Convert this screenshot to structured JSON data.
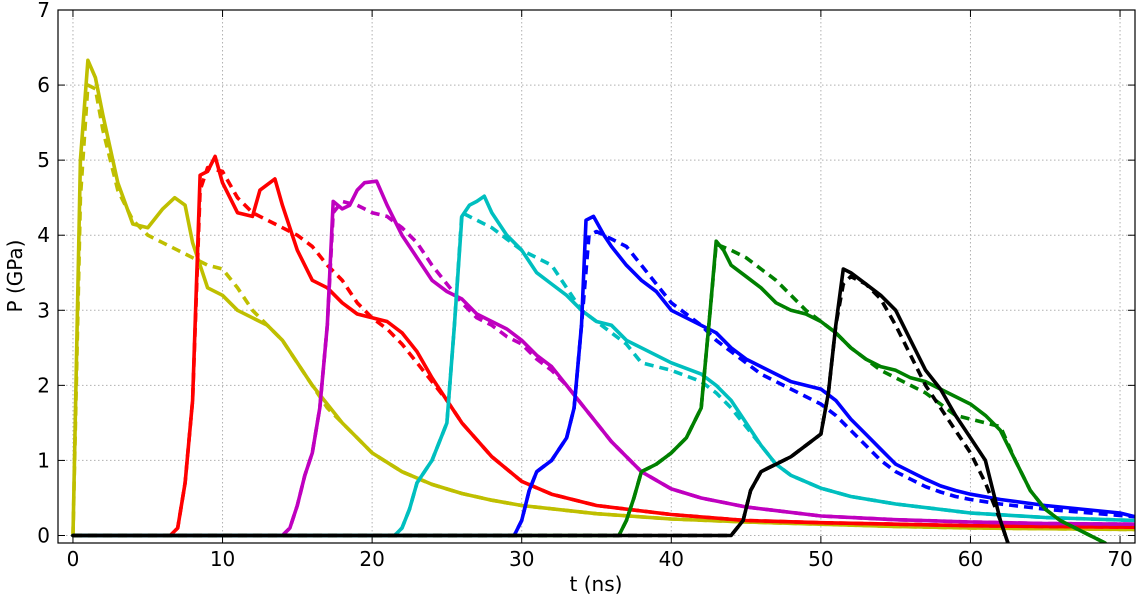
{
  "chart_data": {
    "type": "line",
    "title": "",
    "xlabel": "t (ns)",
    "ylabel": "P (GPa)",
    "xlim": [
      -1,
      71
    ],
    "ylim": [
      -0.1,
      7
    ],
    "xticks": [
      0,
      10,
      20,
      30,
      40,
      50,
      60,
      70
    ],
    "yticks": [
      0,
      1,
      2,
      3,
      4,
      5,
      6,
      7
    ],
    "grid": true,
    "legend": "none",
    "series": [
      {
        "color": "#bfbf00",
        "style": "solid",
        "x": [
          0,
          0.5,
          1,
          1.5,
          2,
          3,
          4,
          5,
          6,
          6.8,
          7.5,
          8,
          9,
          10,
          11,
          12,
          13,
          14,
          15,
          16,
          17,
          18,
          19,
          20,
          22,
          24,
          26,
          28,
          30,
          35,
          40,
          45,
          50,
          55,
          60,
          65,
          71
        ],
        "y": [
          0,
          5,
          6.33,
          6.1,
          5.6,
          4.7,
          4.15,
          4.1,
          4.35,
          4.5,
          4.4,
          3.9,
          3.3,
          3.2,
          3.0,
          2.9,
          2.8,
          2.6,
          2.3,
          2.0,
          1.75,
          1.5,
          1.3,
          1.1,
          0.85,
          0.68,
          0.56,
          0.47,
          0.4,
          0.29,
          0.22,
          0.18,
          0.15,
          0.12,
          0.1,
          0.09,
          0.08
        ]
      },
      {
        "color": "#bfbf00",
        "style": "dashed",
        "x": [
          0,
          0.5,
          1,
          1.5,
          2,
          3,
          4,
          5,
          6,
          7,
          8,
          9,
          10,
          11,
          12,
          13,
          14,
          15,
          16,
          17,
          18,
          19,
          20,
          22,
          24,
          26,
          28,
          30,
          35,
          40,
          45,
          50,
          55,
          60,
          65,
          71
        ],
        "y": [
          0,
          4.5,
          6.0,
          5.95,
          5.4,
          4.6,
          4.2,
          4.0,
          3.9,
          3.8,
          3.7,
          3.6,
          3.55,
          3.3,
          3.0,
          2.8,
          2.6,
          2.3,
          2.0,
          1.7,
          1.5,
          1.3,
          1.1,
          0.85,
          0.68,
          0.56,
          0.47,
          0.4,
          0.29,
          0.22,
          0.18,
          0.15,
          0.12,
          0.1,
          0.09,
          0.08
        ]
      },
      {
        "color": "#ff0000",
        "style": "solid",
        "x": [
          0,
          6.5,
          7,
          7.5,
          8,
          8.5,
          9,
          9.5,
          10,
          11,
          12,
          12.5,
          13.5,
          14,
          15,
          16,
          17,
          18,
          19,
          20,
          21,
          22,
          23,
          24,
          25,
          26,
          28,
          30,
          32,
          35,
          40,
          45,
          50,
          55,
          60,
          65,
          71
        ],
        "y": [
          0,
          0,
          0.1,
          0.7,
          1.8,
          4.8,
          4.85,
          5.05,
          4.7,
          4.3,
          4.25,
          4.6,
          4.75,
          4.4,
          3.8,
          3.4,
          3.3,
          3.1,
          2.95,
          2.9,
          2.85,
          2.7,
          2.45,
          2.1,
          1.8,
          1.5,
          1.05,
          0.72,
          0.55,
          0.4,
          0.28,
          0.2,
          0.17,
          0.15,
          0.13,
          0.12,
          0.11
        ]
      },
      {
        "color": "#ff0000",
        "style": "dashed",
        "x": [
          0,
          6.5,
          7,
          7.5,
          8,
          8.5,
          9,
          10,
          11,
          12,
          13,
          14,
          15,
          16,
          17,
          18,
          19,
          20,
          21,
          22,
          23,
          24,
          25,
          26,
          28,
          30,
          32,
          35,
          40,
          45,
          50,
          55,
          60,
          65,
          71
        ],
        "y": [
          0,
          0,
          0.1,
          0.7,
          1.8,
          4.6,
          4.9,
          4.85,
          4.5,
          4.3,
          4.2,
          4.1,
          4.0,
          3.85,
          3.6,
          3.4,
          3.1,
          2.9,
          2.75,
          2.55,
          2.3,
          2.05,
          1.8,
          1.5,
          1.05,
          0.72,
          0.55,
          0.4,
          0.28,
          0.2,
          0.17,
          0.15,
          0.13,
          0.12,
          0.11
        ]
      },
      {
        "color": "#bf00bf",
        "style": "solid",
        "x": [
          0,
          14,
          14.5,
          15,
          15.5,
          16,
          16.5,
          17,
          17.4,
          18,
          18.5,
          19,
          19.5,
          20.3,
          21,
          22,
          23,
          24,
          25,
          26,
          27,
          28,
          29,
          30,
          31,
          32,
          33,
          34,
          35,
          36,
          38,
          40,
          42,
          45,
          50,
          55,
          60,
          65,
          71
        ],
        "y": [
          0,
          0,
          0.1,
          0.4,
          0.8,
          1.1,
          1.7,
          2.8,
          4.45,
          4.35,
          4.4,
          4.6,
          4.7,
          4.72,
          4.4,
          4.0,
          3.7,
          3.4,
          3.25,
          3.15,
          2.95,
          2.85,
          2.75,
          2.6,
          2.4,
          2.25,
          2.0,
          1.75,
          1.5,
          1.25,
          0.85,
          0.62,
          0.5,
          0.38,
          0.26,
          0.21,
          0.18,
          0.16,
          0.15
        ]
      },
      {
        "color": "#bf00bf",
        "style": "dashed",
        "x": [
          0,
          14,
          14.5,
          15,
          15.5,
          16,
          16.5,
          17,
          17.4,
          18,
          19,
          20,
          21,
          22,
          23,
          24,
          25,
          26,
          27,
          28,
          29,
          30,
          31,
          32,
          33,
          34,
          35,
          36,
          38,
          40,
          42,
          45,
          50,
          55,
          60,
          65,
          71
        ],
        "y": [
          0,
          0,
          0.1,
          0.4,
          0.8,
          1.1,
          1.7,
          2.8,
          4.3,
          4.45,
          4.4,
          4.3,
          4.25,
          4.1,
          3.9,
          3.6,
          3.35,
          3.1,
          2.9,
          2.8,
          2.65,
          2.55,
          2.35,
          2.2,
          2.0,
          1.75,
          1.5,
          1.25,
          0.85,
          0.62,
          0.5,
          0.38,
          0.26,
          0.21,
          0.18,
          0.16,
          0.15
        ]
      },
      {
        "color": "#00bfbf",
        "style": "solid",
        "x": [
          0,
          21.5,
          22,
          22.5,
          23,
          24,
          25,
          25.5,
          26,
          26.5,
          27,
          27.5,
          28,
          29,
          30,
          31,
          32,
          33,
          34,
          35,
          36,
          37,
          38,
          40,
          42,
          43,
          44,
          45,
          46,
          47,
          48,
          50,
          52,
          55,
          60,
          65,
          71
        ],
        "y": [
          0,
          0,
          0.1,
          0.35,
          0.7,
          1.0,
          1.5,
          2.8,
          4.25,
          4.4,
          4.45,
          4.52,
          4.3,
          4.0,
          3.8,
          3.5,
          3.35,
          3.2,
          3.0,
          2.85,
          2.8,
          2.6,
          2.5,
          2.3,
          2.15,
          2.0,
          1.8,
          1.5,
          1.2,
          0.95,
          0.8,
          0.63,
          0.52,
          0.42,
          0.3,
          0.24,
          0.2
        ]
      },
      {
        "color": "#00bfbf",
        "style": "dashed",
        "x": [
          0,
          21.5,
          22,
          22.5,
          23,
          24,
          25,
          25.5,
          26,
          27,
          28,
          29,
          30,
          31,
          32,
          33,
          34,
          35,
          36,
          37,
          38,
          40,
          42,
          43,
          44,
          45,
          46,
          47,
          48,
          50,
          52,
          55,
          60,
          65,
          71
        ],
        "y": [
          0,
          0,
          0.1,
          0.35,
          0.7,
          1.0,
          1.5,
          2.8,
          4.3,
          4.2,
          4.1,
          3.95,
          3.8,
          3.7,
          3.6,
          3.3,
          3.0,
          2.85,
          2.7,
          2.55,
          2.3,
          2.2,
          2.05,
          1.9,
          1.7,
          1.45,
          1.2,
          0.95,
          0.8,
          0.63,
          0.52,
          0.42,
          0.3,
          0.24,
          0.2
        ]
      },
      {
        "color": "#0000ff",
        "style": "solid",
        "x": [
          0,
          29.5,
          30,
          30.5,
          31,
          32,
          33,
          33.5,
          34,
          34.3,
          34.8,
          35.5,
          36,
          37,
          38,
          39,
          40,
          41,
          42,
          43,
          44,
          45,
          46,
          47,
          48,
          49,
          50,
          51,
          52,
          53,
          54,
          55,
          56,
          57,
          58,
          59,
          60,
          62,
          65,
          68,
          70,
          71
        ],
        "y": [
          0,
          0,
          0.2,
          0.6,
          0.85,
          1.0,
          1.3,
          1.7,
          2.8,
          4.2,
          4.25,
          4.0,
          3.85,
          3.6,
          3.4,
          3.25,
          3.0,
          2.9,
          2.8,
          2.7,
          2.5,
          2.35,
          2.25,
          2.15,
          2.05,
          2.0,
          1.95,
          1.8,
          1.55,
          1.35,
          1.15,
          0.95,
          0.85,
          0.75,
          0.66,
          0.6,
          0.55,
          0.48,
          0.4,
          0.34,
          0.3,
          0.25
        ]
      },
      {
        "color": "#0000ff",
        "style": "dashed",
        "x": [
          0,
          29.5,
          30,
          30.5,
          31,
          32,
          33,
          33.5,
          34,
          34.5,
          35,
          36,
          37,
          38,
          39,
          40,
          41,
          42,
          43,
          44,
          45,
          46,
          47,
          48,
          49,
          50,
          51,
          52,
          53,
          54,
          55,
          56,
          57,
          58,
          59,
          60,
          62,
          65,
          68,
          71
        ],
        "y": [
          0,
          0,
          0.2,
          0.6,
          0.85,
          1.0,
          1.3,
          1.7,
          2.8,
          4.0,
          4.05,
          3.95,
          3.85,
          3.6,
          3.35,
          3.1,
          2.95,
          2.8,
          2.6,
          2.45,
          2.3,
          2.15,
          2.05,
          1.95,
          1.85,
          1.75,
          1.6,
          1.4,
          1.2,
          1.0,
          0.85,
          0.75,
          0.65,
          0.58,
          0.52,
          0.48,
          0.42,
          0.35,
          0.3,
          0.25
        ]
      },
      {
        "color": "#008000",
        "style": "solid",
        "x": [
          0,
          36.5,
          37,
          37.5,
          38,
          39,
          40,
          41,
          42,
          42.6,
          43,
          43.5,
          44,
          45,
          46,
          47,
          48,
          49,
          50,
          51,
          52,
          53,
          54,
          55,
          56,
          57,
          58,
          59,
          60,
          61,
          62,
          63,
          64,
          65,
          66,
          67,
          68,
          69
        ],
        "y": [
          0,
          0,
          0.2,
          0.5,
          0.85,
          0.95,
          1.1,
          1.3,
          1.7,
          3.0,
          3.92,
          3.8,
          3.6,
          3.45,
          3.3,
          3.1,
          3.0,
          2.95,
          2.85,
          2.7,
          2.5,
          2.35,
          2.25,
          2.2,
          2.1,
          2.05,
          1.95,
          1.85,
          1.75,
          1.6,
          1.4,
          1.0,
          0.6,
          0.35,
          0.2,
          0.1,
          0.0,
          -0.1
        ]
      },
      {
        "color": "#008000",
        "style": "dashed",
        "x": [
          0,
          36.5,
          37,
          37.5,
          38,
          39,
          40,
          41,
          42,
          42.6,
          43,
          44,
          45,
          46,
          47,
          48,
          49,
          50,
          51,
          52,
          53,
          54,
          55,
          56,
          57,
          58,
          59,
          60,
          61,
          62,
          63,
          64,
          65,
          66,
          67,
          68,
          69
        ],
        "y": [
          0,
          0,
          0.2,
          0.5,
          0.85,
          0.95,
          1.1,
          1.3,
          1.7,
          3.0,
          3.88,
          3.8,
          3.7,
          3.55,
          3.4,
          3.2,
          3.0,
          2.85,
          2.7,
          2.5,
          2.35,
          2.2,
          2.1,
          2.0,
          1.9,
          1.75,
          1.6,
          1.55,
          1.5,
          1.45,
          1.0,
          0.6,
          0.35,
          0.2,
          0.1,
          0.0,
          -0.1
        ]
      },
      {
        "color": "#000000",
        "style": "solid",
        "x": [
          0,
          44,
          44.8,
          45.3,
          46,
          46.5,
          47,
          48,
          49,
          50,
          50.5,
          51,
          51.5,
          52,
          53,
          54,
          55,
          56,
          57,
          58,
          59,
          60,
          61,
          62,
          62.5
        ],
        "y": [
          0,
          0,
          0.2,
          0.6,
          0.85,
          0.9,
          0.95,
          1.05,
          1.2,
          1.35,
          1.9,
          2.8,
          3.55,
          3.5,
          3.35,
          3.2,
          3.0,
          2.6,
          2.2,
          1.95,
          1.6,
          1.3,
          1.0,
          0.2,
          -0.1
        ]
      },
      {
        "color": "#000000",
        "style": "dashed",
        "x": [
          0,
          44,
          44.8,
          45.3,
          46,
          46.5,
          47,
          48,
          49,
          50,
          50.5,
          51,
          51.5,
          52,
          53,
          54,
          55,
          56,
          57,
          58,
          59,
          60,
          61,
          62,
          62.5
        ],
        "y": [
          0,
          0,
          0.2,
          0.6,
          0.85,
          0.9,
          0.95,
          1.05,
          1.2,
          1.35,
          1.9,
          2.8,
          3.35,
          3.45,
          3.35,
          3.15,
          2.8,
          2.4,
          2.0,
          1.7,
          1.4,
          1.1,
          0.7,
          0.2,
          -0.1
        ]
      }
    ]
  }
}
